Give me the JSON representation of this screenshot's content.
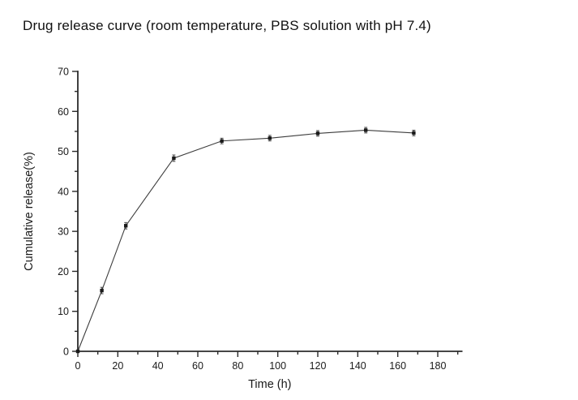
{
  "title": "Drug release curve (room temperature, PBS solution with pH 7.4)",
  "colors": {
    "background": "#ffffff",
    "axis": "#2b2b2b",
    "line": "#3c3c3c",
    "marker": "#1a1a1a",
    "text": "#1a1a1a"
  },
  "chart_data": {
    "type": "line",
    "title": "Drug release curve (room temperature, PBS solution with pH 7.4)",
    "xlabel": "Time (h)",
    "ylabel": "Cumulative release(%)",
    "x": [
      0,
      12,
      24,
      48,
      72,
      96,
      120,
      144,
      168
    ],
    "y": [
      0,
      15.2,
      31.4,
      48.3,
      52.6,
      53.3,
      54.5,
      55.3,
      54.6
    ],
    "error": [
      0,
      0.8,
      0.8,
      0.8,
      0.7,
      0.7,
      0.7,
      0.7,
      0.7
    ],
    "xlim": [
      0,
      192
    ],
    "ylim": [
      0,
      70
    ],
    "x_major_ticks": [
      0,
      20,
      40,
      60,
      80,
      100,
      120,
      140,
      160,
      180
    ],
    "x_minor_step": 10,
    "x_minor_max": 190,
    "y_major_ticks": [
      0,
      10,
      20,
      30,
      40,
      50,
      60,
      70
    ],
    "y_minor_step": 5,
    "grid": false,
    "legend": null,
    "marker": "square"
  }
}
